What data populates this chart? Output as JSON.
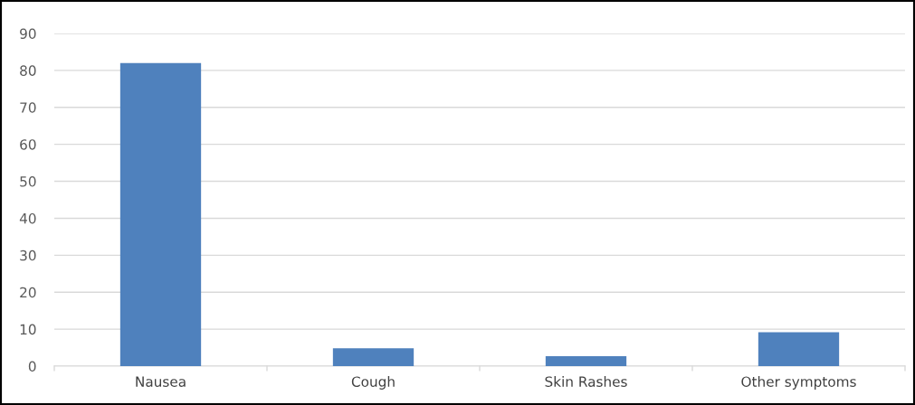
{
  "chart_data": {
    "type": "bar",
    "categories": [
      "Nausea",
      "Cough",
      "Skin Rashes",
      "Other symptoms"
    ],
    "values": [
      82,
      4.8,
      2.7,
      9.2
    ],
    "color": "#4f81bd",
    "ylim": [
      0,
      90
    ],
    "yticks": [
      0,
      10,
      20,
      30,
      40,
      50,
      60,
      70,
      80,
      90
    ],
    "grid": "y"
  }
}
